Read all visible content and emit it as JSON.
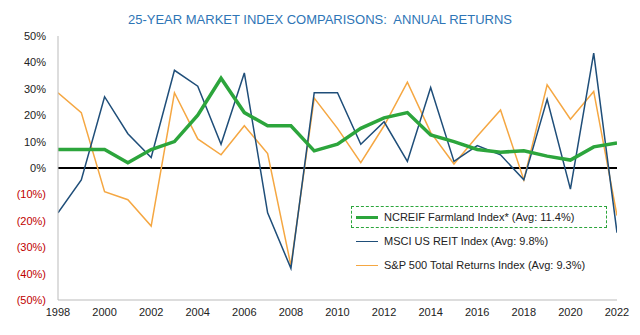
{
  "chart_data": {
    "type": "line",
    "title": "25-YEAR MARKET INDEX COMPARISONS:  ANNUAL RETURNS",
    "x": [
      1998,
      1999,
      2000,
      2001,
      2002,
      2003,
      2004,
      2005,
      2006,
      2007,
      2008,
      2009,
      2010,
      2011,
      2012,
      2013,
      2014,
      2015,
      2016,
      2017,
      2018,
      2019,
      2020,
      2021,
      2022
    ],
    "series": [
      {
        "name": "NCREIF Farmland Index* (Avg: 11.4%)",
        "color": "#2ca53c",
        "values": [
          7,
          7,
          7,
          2,
          7,
          10,
          20,
          34,
          21,
          16,
          16,
          6.5,
          9,
          15,
          19,
          21,
          12.5,
          10,
          7,
          6,
          6.5,
          4.5,
          3,
          8,
          9.5
        ]
      },
      {
        "name": "MSCI US REIT Index (Avg: 9.8%)",
        "color": "#1f4e79",
        "values": [
          -17,
          -4.5,
          27,
          13,
          4,
          37,
          31,
          9,
          36,
          -17,
          -38,
          28.5,
          28.5,
          9,
          17.5,
          2.5,
          30.5,
          2.5,
          8.5,
          5,
          -4.5,
          26,
          -8,
          43.5,
          -24.5
        ]
      },
      {
        "name": "S&P 500 Total Returns Index (Avg: 9.3%)",
        "color": "#f5a742",
        "values": [
          28.5,
          21,
          -9,
          -12,
          -22,
          28.5,
          11,
          5,
          16,
          5.5,
          -37,
          26.5,
          15,
          2,
          16,
          32.5,
          13.5,
          1.5,
          12,
          22,
          -4.5,
          31.5,
          18.5,
          29,
          -18
        ]
      }
    ],
    "xlim": [
      1998,
      2022
    ],
    "xticks": [
      1998,
      2000,
      2002,
      2004,
      2006,
      2008,
      2010,
      2012,
      2014,
      2016,
      2018,
      2020,
      2022
    ],
    "ylim": [
      -50,
      50
    ],
    "yticks": [
      {
        "value": 50,
        "label": "50%"
      },
      {
        "value": 40,
        "label": "40%"
      },
      {
        "value": 30,
        "label": "30%"
      },
      {
        "value": 20,
        "label": "20%"
      },
      {
        "value": 10,
        "label": "10%"
      },
      {
        "value": 0,
        "label": "0%"
      },
      {
        "value": -10,
        "label": "(10%)"
      },
      {
        "value": -20,
        "label": "(20%)"
      },
      {
        "value": -30,
        "label": "(30%)"
      },
      {
        "value": -40,
        "label": "(40%)"
      },
      {
        "value": -50,
        "label": "(50%)"
      }
    ],
    "grid": false
  }
}
